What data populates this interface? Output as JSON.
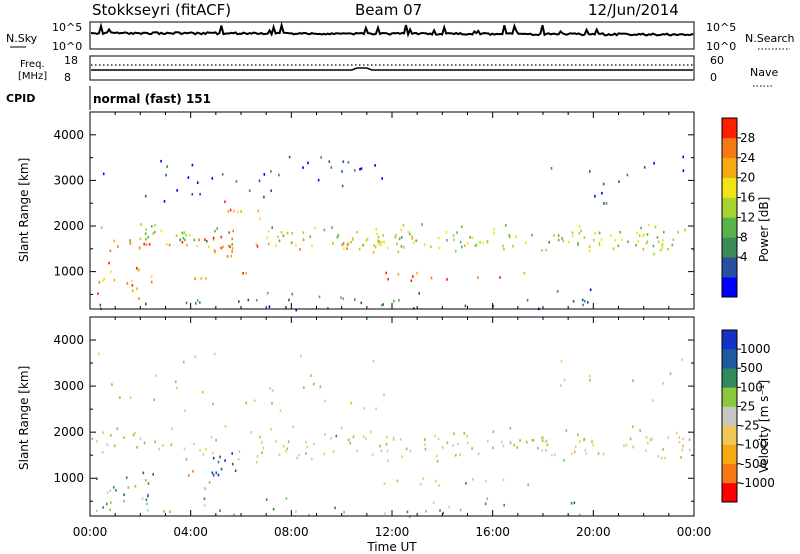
{
  "header": {
    "station": "Stokkseyri (fitACF)",
    "beam": "Beam 07",
    "date": "12/Jun/2014"
  },
  "noise_panel": {
    "left_label": "N.Sky",
    "right_label": "N.Search",
    "left_ticks": [
      "10^5",
      "10^0"
    ],
    "right_ticks": [
      "10^5",
      "10^0"
    ]
  },
  "freq_panel": {
    "left_label_1": "Freq.",
    "left_label_2": "[MHz]",
    "right_label": "Nave",
    "left_ticks": [
      "18",
      "8"
    ],
    "right_ticks": [
      "60",
      "0"
    ]
  },
  "cpid": {
    "label": "CPID",
    "value": "normal (fast) 151"
  },
  "chart_data": [
    {
      "type": "heatmap",
      "parameter": "power",
      "ylabel": "Slant Range [km]",
      "ylim": [
        180,
        4500
      ],
      "yticks": [
        "1000",
        "2000",
        "3000",
        "4000"
      ],
      "xlim": [
        0,
        24
      ],
      "colorbar_label": "Power [dB]",
      "colorbar_ticks": [
        "28",
        "24",
        "20",
        "16",
        "12",
        "8",
        "4"
      ],
      "colors": [
        "#0000ff",
        "#2850a0",
        "#3c8c5a",
        "#58b44a",
        "#a8d230",
        "#f0e414",
        "#f5aa14",
        "#f57814",
        "#ff1e00"
      ],
      "bands": [
        {
          "t0": 0.0,
          "t1": 24.0,
          "r_center": 1780,
          "r_width": 320,
          "level": 0.5,
          "density": 0.9
        },
        {
          "t0": 0.2,
          "t1": 10.3,
          "r_center": 1620,
          "r_width": 200,
          "level": 0.75,
          "density": 0.85
        },
        {
          "t0": 10.3,
          "t1": 24.0,
          "r_center": 1650,
          "r_width": 260,
          "level": 0.55,
          "density": 0.9
        },
        {
          "t0": 11.6,
          "t1": 17.5,
          "r_center": 920,
          "r_width": 110,
          "level": 0.85,
          "density": 0.95
        },
        {
          "t0": 4.8,
          "t1": 6.2,
          "r_center": 1500,
          "r_width": 600,
          "level": 0.9,
          "density": 0.85
        },
        {
          "t0": 4.7,
          "t1": 6.8,
          "r_center": 2350,
          "r_width": 300,
          "level": 0.8,
          "density": 0.7
        },
        {
          "t0": 0.0,
          "t1": 2.6,
          "r_center": 800,
          "r_width": 520,
          "level": 0.75,
          "density": 0.75
        },
        {
          "t0": 0.0,
          "t1": 12.0,
          "r_center": 3100,
          "r_width": 700,
          "level": 0.15,
          "density": 0.25
        },
        {
          "t0": 18.0,
          "t1": 24.0,
          "r_center": 3100,
          "r_width": 800,
          "level": 0.15,
          "density": 0.15
        },
        {
          "t0": 0.0,
          "t1": 20.0,
          "r_center": 350,
          "r_width": 300,
          "level": 0.25,
          "density": 0.4
        },
        {
          "t0": 3.0,
          "t1": 4.8,
          "r_center": 850,
          "r_width": 120,
          "level": 0.7,
          "density": 0.8
        }
      ]
    },
    {
      "type": "heatmap",
      "parameter": "velocity",
      "xlabel": "Time UT",
      "ylabel": "Slant Range [km]",
      "ylim": [
        180,
        4500
      ],
      "yticks": [
        "1000",
        "2000",
        "3000",
        "4000"
      ],
      "xlim": [
        0,
        24
      ],
      "xticks": [
        "00:00",
        "04:00",
        "08:00",
        "12:00",
        "16:00",
        "20:00",
        "00:00"
      ],
      "colorbar_label": "Velocity [m s⁻¹]",
      "colorbar_ticks": [
        "1000",
        "500",
        "100",
        "25",
        "-25",
        "-100",
        "-500",
        "-1000"
      ],
      "colors": [
        "#ff0000",
        "#f57814",
        "#f5aa14",
        "#f0c85a",
        "#c8c8c0",
        "#8cc83c",
        "#2d8c5a",
        "#1e5aa0",
        "#1432c8"
      ],
      "bands": [
        {
          "t0": 0.0,
          "t1": 24.0,
          "r_center": 1760,
          "r_width": 420,
          "level": 0.5,
          "density": 0.9
        },
        {
          "t0": 11.6,
          "t1": 17.5,
          "r_center": 920,
          "r_width": 110,
          "level": 0.5,
          "density": 0.95
        },
        {
          "t0": 4.8,
          "t1": 6.3,
          "r_center": 1400,
          "r_width": 500,
          "level": 0.92,
          "density": 0.85
        },
        {
          "t0": 0.0,
          "t1": 2.6,
          "r_center": 780,
          "r_width": 520,
          "level": 0.7,
          "density": 0.75
        },
        {
          "t0": 3.8,
          "t1": 4.2,
          "r_center": 1200,
          "r_width": 350,
          "level": 0.1,
          "density": 0.7
        },
        {
          "t0": 0.0,
          "t1": 12.0,
          "r_center": 3100,
          "r_width": 700,
          "level": 0.5,
          "density": 0.2
        },
        {
          "t0": 18.0,
          "t1": 24.0,
          "r_center": 3100,
          "r_width": 800,
          "level": 0.5,
          "density": 0.12
        },
        {
          "t0": 0.0,
          "t1": 20.0,
          "r_center": 350,
          "r_width": 300,
          "level": 0.62,
          "density": 0.35
        },
        {
          "t0": 3.0,
          "t1": 4.8,
          "r_center": 850,
          "r_width": 120,
          "level": 0.5,
          "density": 0.8
        }
      ]
    }
  ]
}
